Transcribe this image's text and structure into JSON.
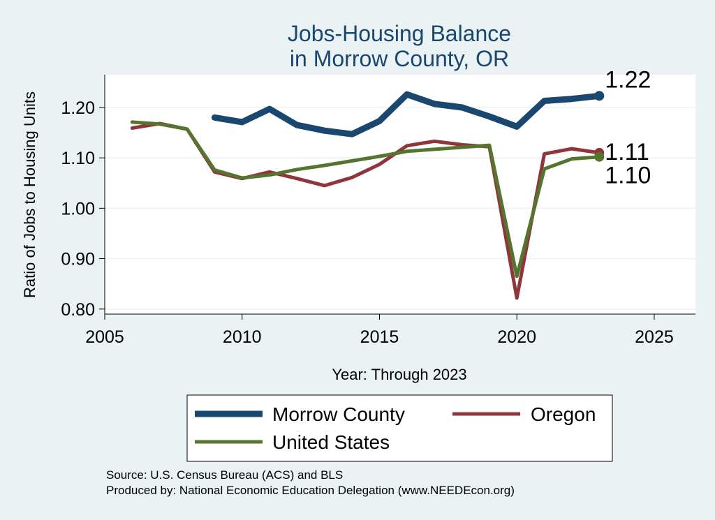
{
  "chart_data": {
    "type": "line",
    "title": [
      "Jobs-Housing Balance",
      "in Morrow County, OR"
    ],
    "xlabel": "Year: Through 2023",
    "ylabel": "Ratio of Jobs to Housing Units",
    "xlim": [
      2005,
      2026.5
    ],
    "ylim": [
      0.79,
      1.265
    ],
    "x_ticks": [
      2005,
      2010,
      2015,
      2020,
      2025
    ],
    "y_ticks": [
      0.8,
      0.9,
      1.0,
      1.1,
      1.2
    ],
    "y_tick_labels": [
      "0.80",
      "0.90",
      "1.00",
      "1.10",
      "1.20"
    ],
    "grid": true,
    "legend_position": "bottom",
    "series": [
      {
        "name": "Morrow County",
        "color": "#1a476f",
        "end_label": "1.22",
        "x": [
          2009,
          2010,
          2011,
          2012,
          2013,
          2014,
          2015,
          2016,
          2017,
          2018,
          2019,
          2020,
          2021,
          2022,
          2023
        ],
        "values": [
          1.18,
          1.171,
          1.197,
          1.165,
          1.154,
          1.147,
          1.173,
          1.226,
          1.207,
          1.2,
          1.182,
          1.162,
          1.213,
          1.217,
          1.223
        ]
      },
      {
        "name": "Oregon",
        "color": "#90353b",
        "end_label": "1.11",
        "x": [
          2006,
          2007,
          2008,
          2009,
          2010,
          2011,
          2012,
          2013,
          2014,
          2015,
          2016,
          2017,
          2018,
          2019,
          2020,
          2021,
          2022,
          2023
        ],
        "values": [
          1.159,
          1.168,
          1.157,
          1.072,
          1.059,
          1.072,
          1.059,
          1.045,
          1.061,
          1.087,
          1.124,
          1.133,
          1.126,
          1.122,
          0.822,
          1.108,
          1.118,
          1.11
        ]
      },
      {
        "name": "United States",
        "color": "#55752f",
        "end_label": "1.10",
        "x": [
          2006,
          2007,
          2008,
          2009,
          2010,
          2011,
          2012,
          2013,
          2014,
          2015,
          2016,
          2017,
          2018,
          2019,
          2020,
          2021,
          2022,
          2023
        ],
        "values": [
          1.171,
          1.167,
          1.157,
          1.076,
          1.06,
          1.066,
          1.077,
          1.085,
          1.094,
          1.103,
          1.113,
          1.117,
          1.121,
          1.125,
          0.865,
          1.078,
          1.098,
          1.102
        ]
      }
    ]
  },
  "notes": [
    "Source: U.S. Census Bureau (ACS) and BLS",
    "Produced by: National Economic Education Delegation (www.NEEDEcon.org)"
  ]
}
